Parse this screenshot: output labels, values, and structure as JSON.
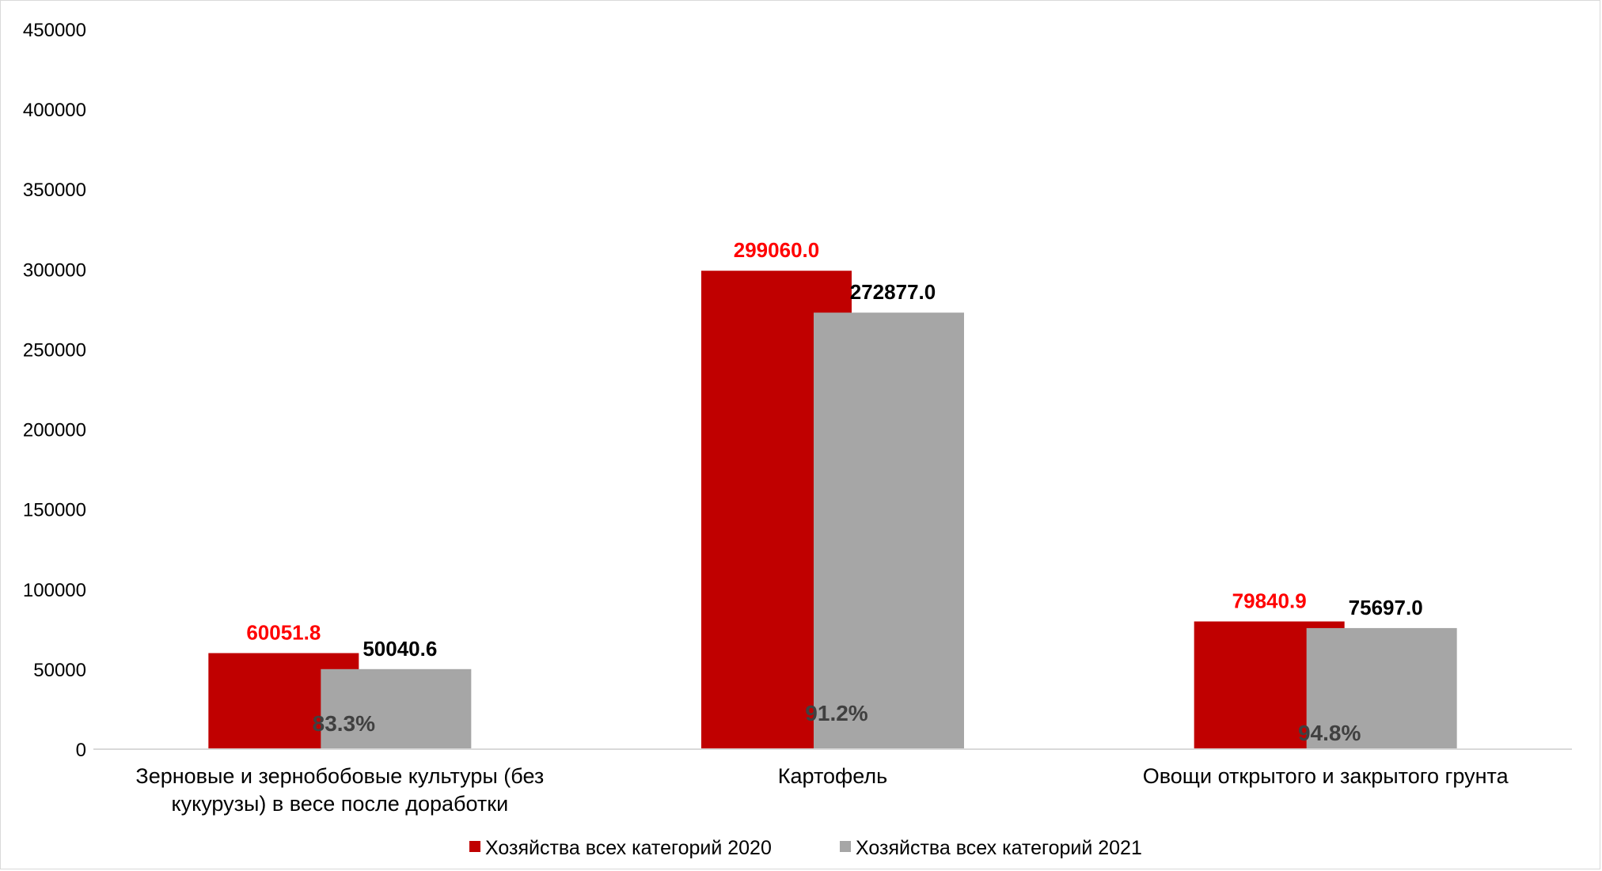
{
  "chart_data": {
    "type": "bar",
    "categories": [
      [
        "Зерновые и зернобобовые культуры (без",
        "кукурузы) в весе после доработки"
      ],
      [
        "Картофель"
      ],
      [
        "Овощи открытого и закрытого грунта"
      ]
    ],
    "series": [
      {
        "name": "Хозяйства всех категорий 2020",
        "color": "#c00000",
        "label_color": "#ff0000",
        "values": [
          60051.8,
          299060.0,
          79840.9
        ],
        "labels": [
          "60051.8",
          "299060.0",
          "79840.9"
        ]
      },
      {
        "name": "Хозяйства всех категорий 2021",
        "color": "#a6a6a6",
        "label_color": "#000000",
        "values": [
          50040.6,
          272877.0,
          75697.0
        ],
        "labels": [
          "50040.6",
          "272877.0",
          "75697.0"
        ]
      }
    ],
    "percent_labels": [
      "83.3%",
      "91.2%",
      "94.8%"
    ],
    "ylim": [
      0,
      450000
    ],
    "yticks": [
      0,
      50000,
      100000,
      150000,
      200000,
      250000,
      300000,
      350000,
      400000,
      450000
    ],
    "title": "",
    "xlabel": "",
    "ylabel": "",
    "legend_position": "bottom",
    "grid": false
  }
}
